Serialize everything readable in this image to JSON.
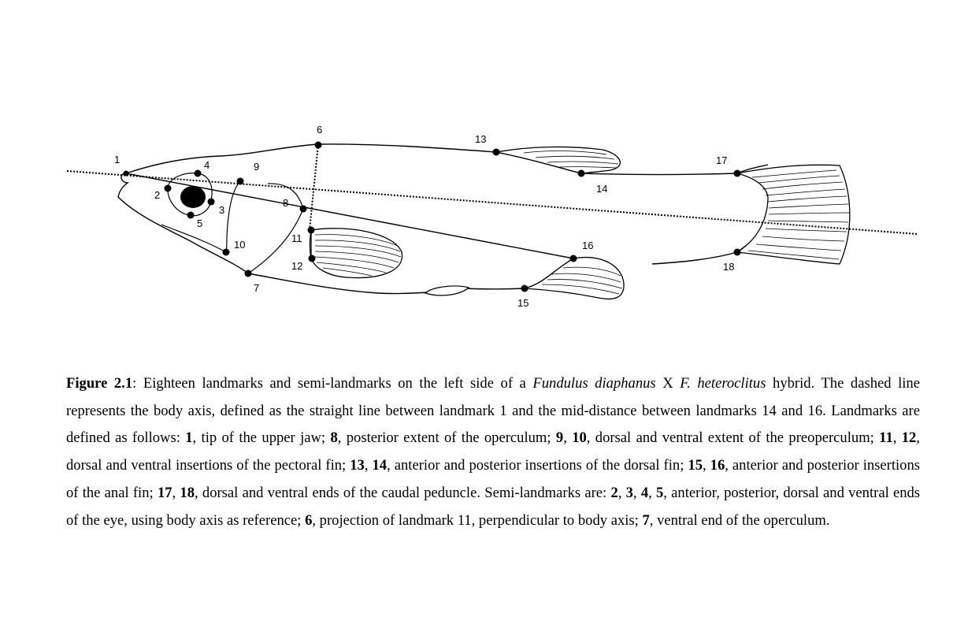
{
  "figure": {
    "landmark_labels": [
      "1",
      "2",
      "3",
      "4",
      "5",
      "6",
      "7",
      "8",
      "9",
      "10",
      "11",
      "12",
      "13",
      "14",
      "15",
      "16",
      "17",
      "18"
    ]
  },
  "caption": {
    "figure_label": "Figure 2.1",
    "colon": ": ",
    "t1": "Eighteen landmarks and semi-landmarks on the left side of a ",
    "species1": "Fundulus diaphanus",
    "t2": " X ",
    "species2": "F. heteroclitus",
    "t3": " hybrid. The dashed line represents the body axis, defined as the straight line between landmark 1 and the mid-distance between landmarks 14 and 16. Landmarks are defined as follows: ",
    "b1": "1",
    "t4": ", tip of the upper jaw; ",
    "b8": "8",
    "t5": ", posterior extent of the operculum; ",
    "b9": "9",
    "c1": ", ",
    "b10": "10",
    "t6": ", dorsal and ventral extent of the preoperculum; ",
    "b11": "11",
    "c2": ", ",
    "b12": "12",
    "t7": ", dorsal and ventral insertions of the pectoral fin; ",
    "b13": "13",
    "c3": ", ",
    "b14": "14",
    "t8": ", anterior and posterior insertions of the dorsal fin; ",
    "b15": "15",
    "c4": ", ",
    "b16": "16",
    "t9": ", anterior and posterior insertions of the anal fin; ",
    "b17": "17",
    "c5": ", ",
    "b18": "18",
    "t10": ", dorsal and ventral ends of the caudal peduncle. Semi-landmarks are: ",
    "b2": "2",
    "c6": ", ",
    "b3": "3",
    "c7": ", ",
    "b4": "4",
    "c8": ", ",
    "b5": "5",
    "t11": ", anterior, posterior, dorsal and ventral ends of the eye, using body axis as reference; ",
    "b6": "6",
    "t12": ", projection of landmark 11, perpendicular to body axis; ",
    "b7": "7",
    "t13": ", ventral end of the operculum."
  }
}
